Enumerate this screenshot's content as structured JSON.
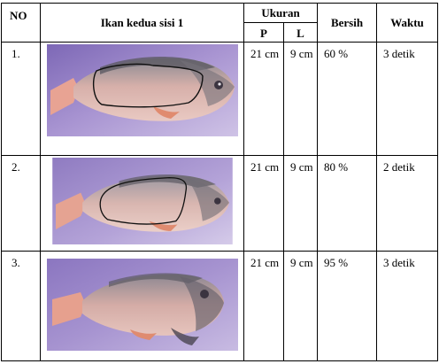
{
  "table": {
    "headers": {
      "no": "NO",
      "fish": "Ikan kedua sisi 1",
      "size": "Ukuran",
      "length": "P",
      "width": "L",
      "clean": "Bersih",
      "time": "Waktu"
    },
    "rows": [
      {
        "no": "1.",
        "p": "21 cm",
        "l": "9 cm",
        "clean": "60 %",
        "time": "3 detik",
        "photo": "fish-photo-with-outlined-region"
      },
      {
        "no": "2.",
        "p": "21 cm",
        "l": "9 cm",
        "clean": "80 %",
        "time": "2 detik",
        "photo": "fish-photo-with-outlined-region"
      },
      {
        "no": "3.",
        "p": "21 cm",
        "l": "9 cm",
        "clean": "95 %",
        "time": "3 detik",
        "photo": "fish-photo"
      }
    ]
  },
  "colors": {
    "background_purple": "#9a86c6",
    "fish_pink": "#d9a39c",
    "fish_dark": "#5d5a63"
  }
}
